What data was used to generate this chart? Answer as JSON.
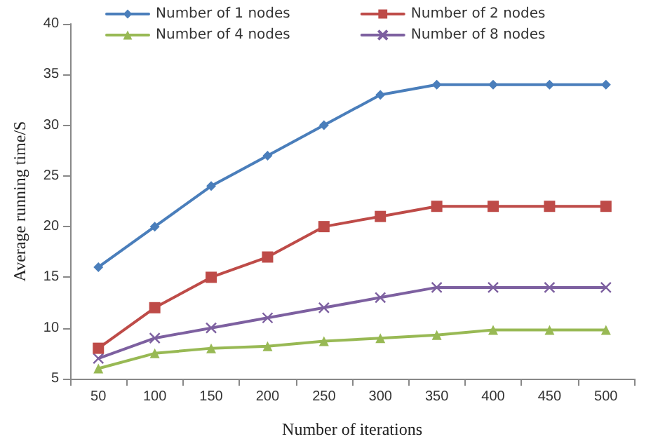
{
  "chart_data": {
    "type": "line",
    "xlabel": "Number of iterations",
    "ylabel": "Average running time/S",
    "categories": [
      "50",
      "100",
      "150",
      "200",
      "250",
      "300",
      "350",
      "400",
      "450",
      "500"
    ],
    "series": [
      {
        "name": "Number of 1 nodes",
        "color": "#4a7ebb",
        "marker": "diamond",
        "values": [
          16,
          20,
          24,
          27,
          30,
          33,
          34,
          34,
          34,
          34
        ]
      },
      {
        "name": "Number of 2 nodes",
        "color": "#be4b48",
        "marker": "square",
        "values": [
          8,
          12,
          15,
          17,
          20,
          21,
          22,
          22,
          22,
          22
        ]
      },
      {
        "name": "Number of 4 nodes",
        "color": "#98b954",
        "marker": "triangle",
        "values": [
          6,
          7.5,
          8,
          8.2,
          8.7,
          9,
          9.3,
          9.8,
          9.8,
          9.8
        ]
      },
      {
        "name": "Number of 8 nodes",
        "color": "#7d60a0",
        "marker": "cross",
        "values": [
          7,
          9,
          10,
          11,
          12,
          13,
          14,
          14,
          14,
          14
        ]
      }
    ],
    "ylim": [
      5,
      40
    ],
    "yticks": [
      5,
      10,
      15,
      20,
      25,
      30,
      35,
      40
    ],
    "grid": false,
    "legend": "top",
    "line_style": "solid"
  }
}
